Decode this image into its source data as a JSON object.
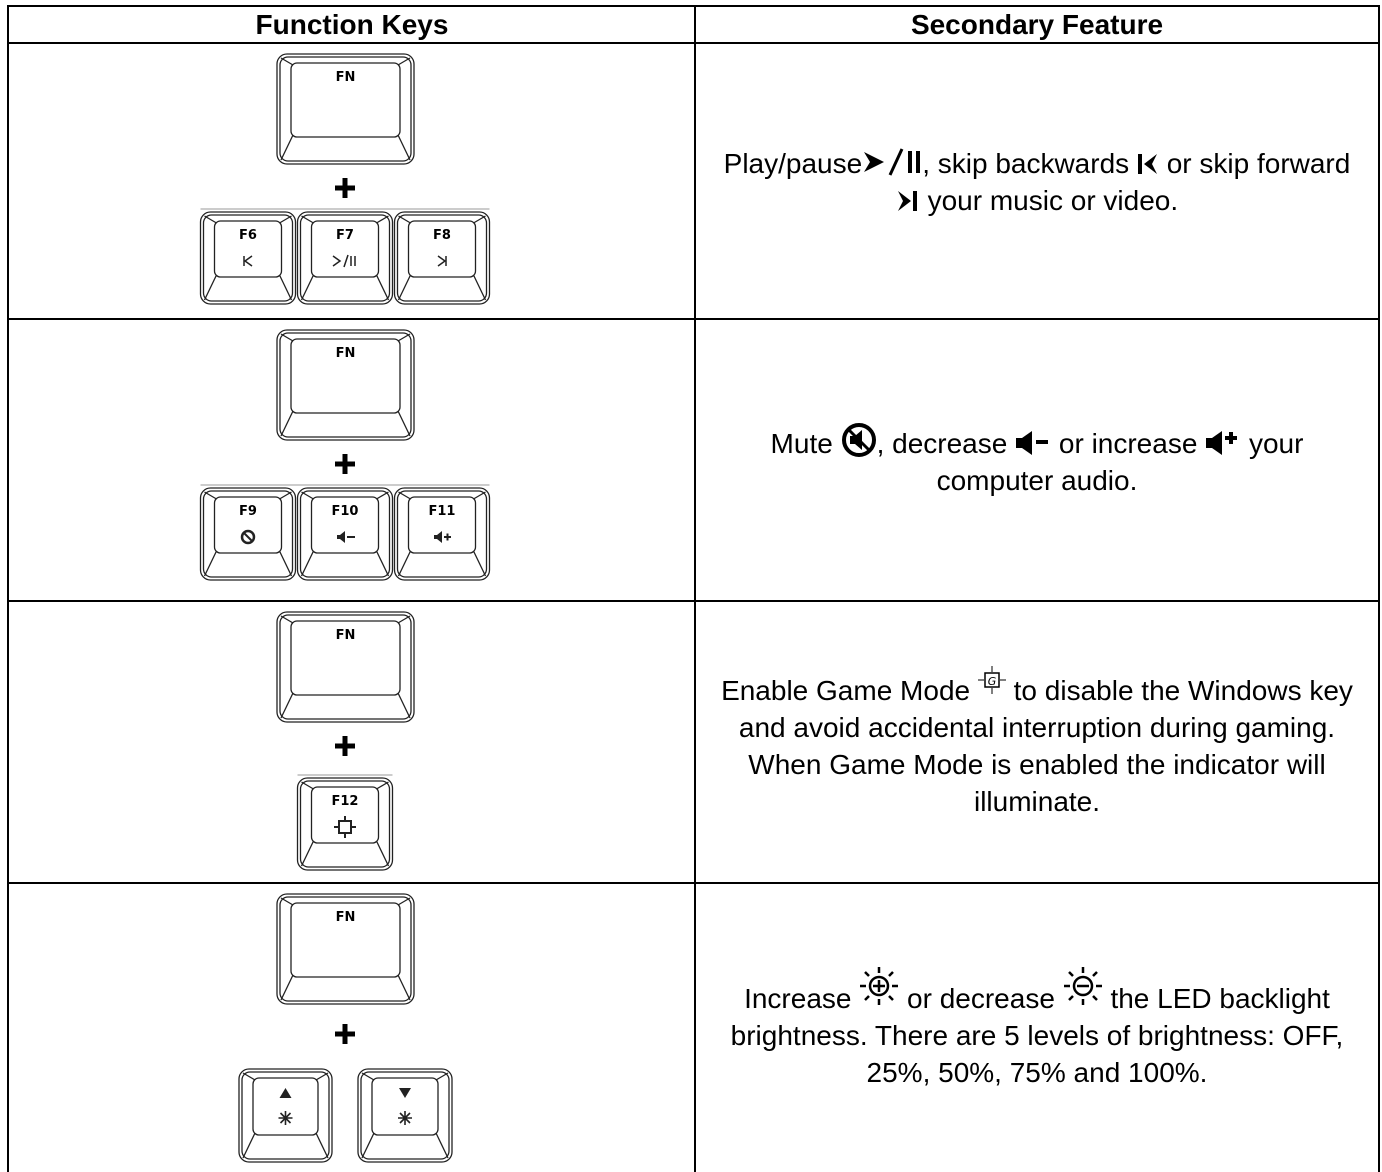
{
  "header": {
    "col1": "Function Keys",
    "col2": "Secondary Feature"
  },
  "rows": [
    {
      "modifier": "FN",
      "keys": [
        "F6",
        "F7",
        "F8"
      ],
      "description": [
        "Play/pause",
        ", skip backwards ",
        " or skip forward ",
        " your music or video."
      ]
    },
    {
      "modifier": "FN",
      "keys": [
        "F9",
        "F10",
        "F11"
      ],
      "description": [
        "Mute ",
        ", decrease ",
        " or increase ",
        " your computer audio."
      ]
    },
    {
      "modifier": "FN",
      "keys": [
        "F12"
      ],
      "description": [
        "Enable Game Mode ",
        "  to disable the Windows key and avoid accidental interruption during gaming. When Game Mode is enabled the indicator will illuminate."
      ]
    },
    {
      "modifier": "FN",
      "description": [
        "Increase ",
        " or decrease ",
        " the LED backlight brightness. There are 5 levels of brightness: OFF, 25%, 50%, 75% and 100%."
      ]
    }
  ]
}
